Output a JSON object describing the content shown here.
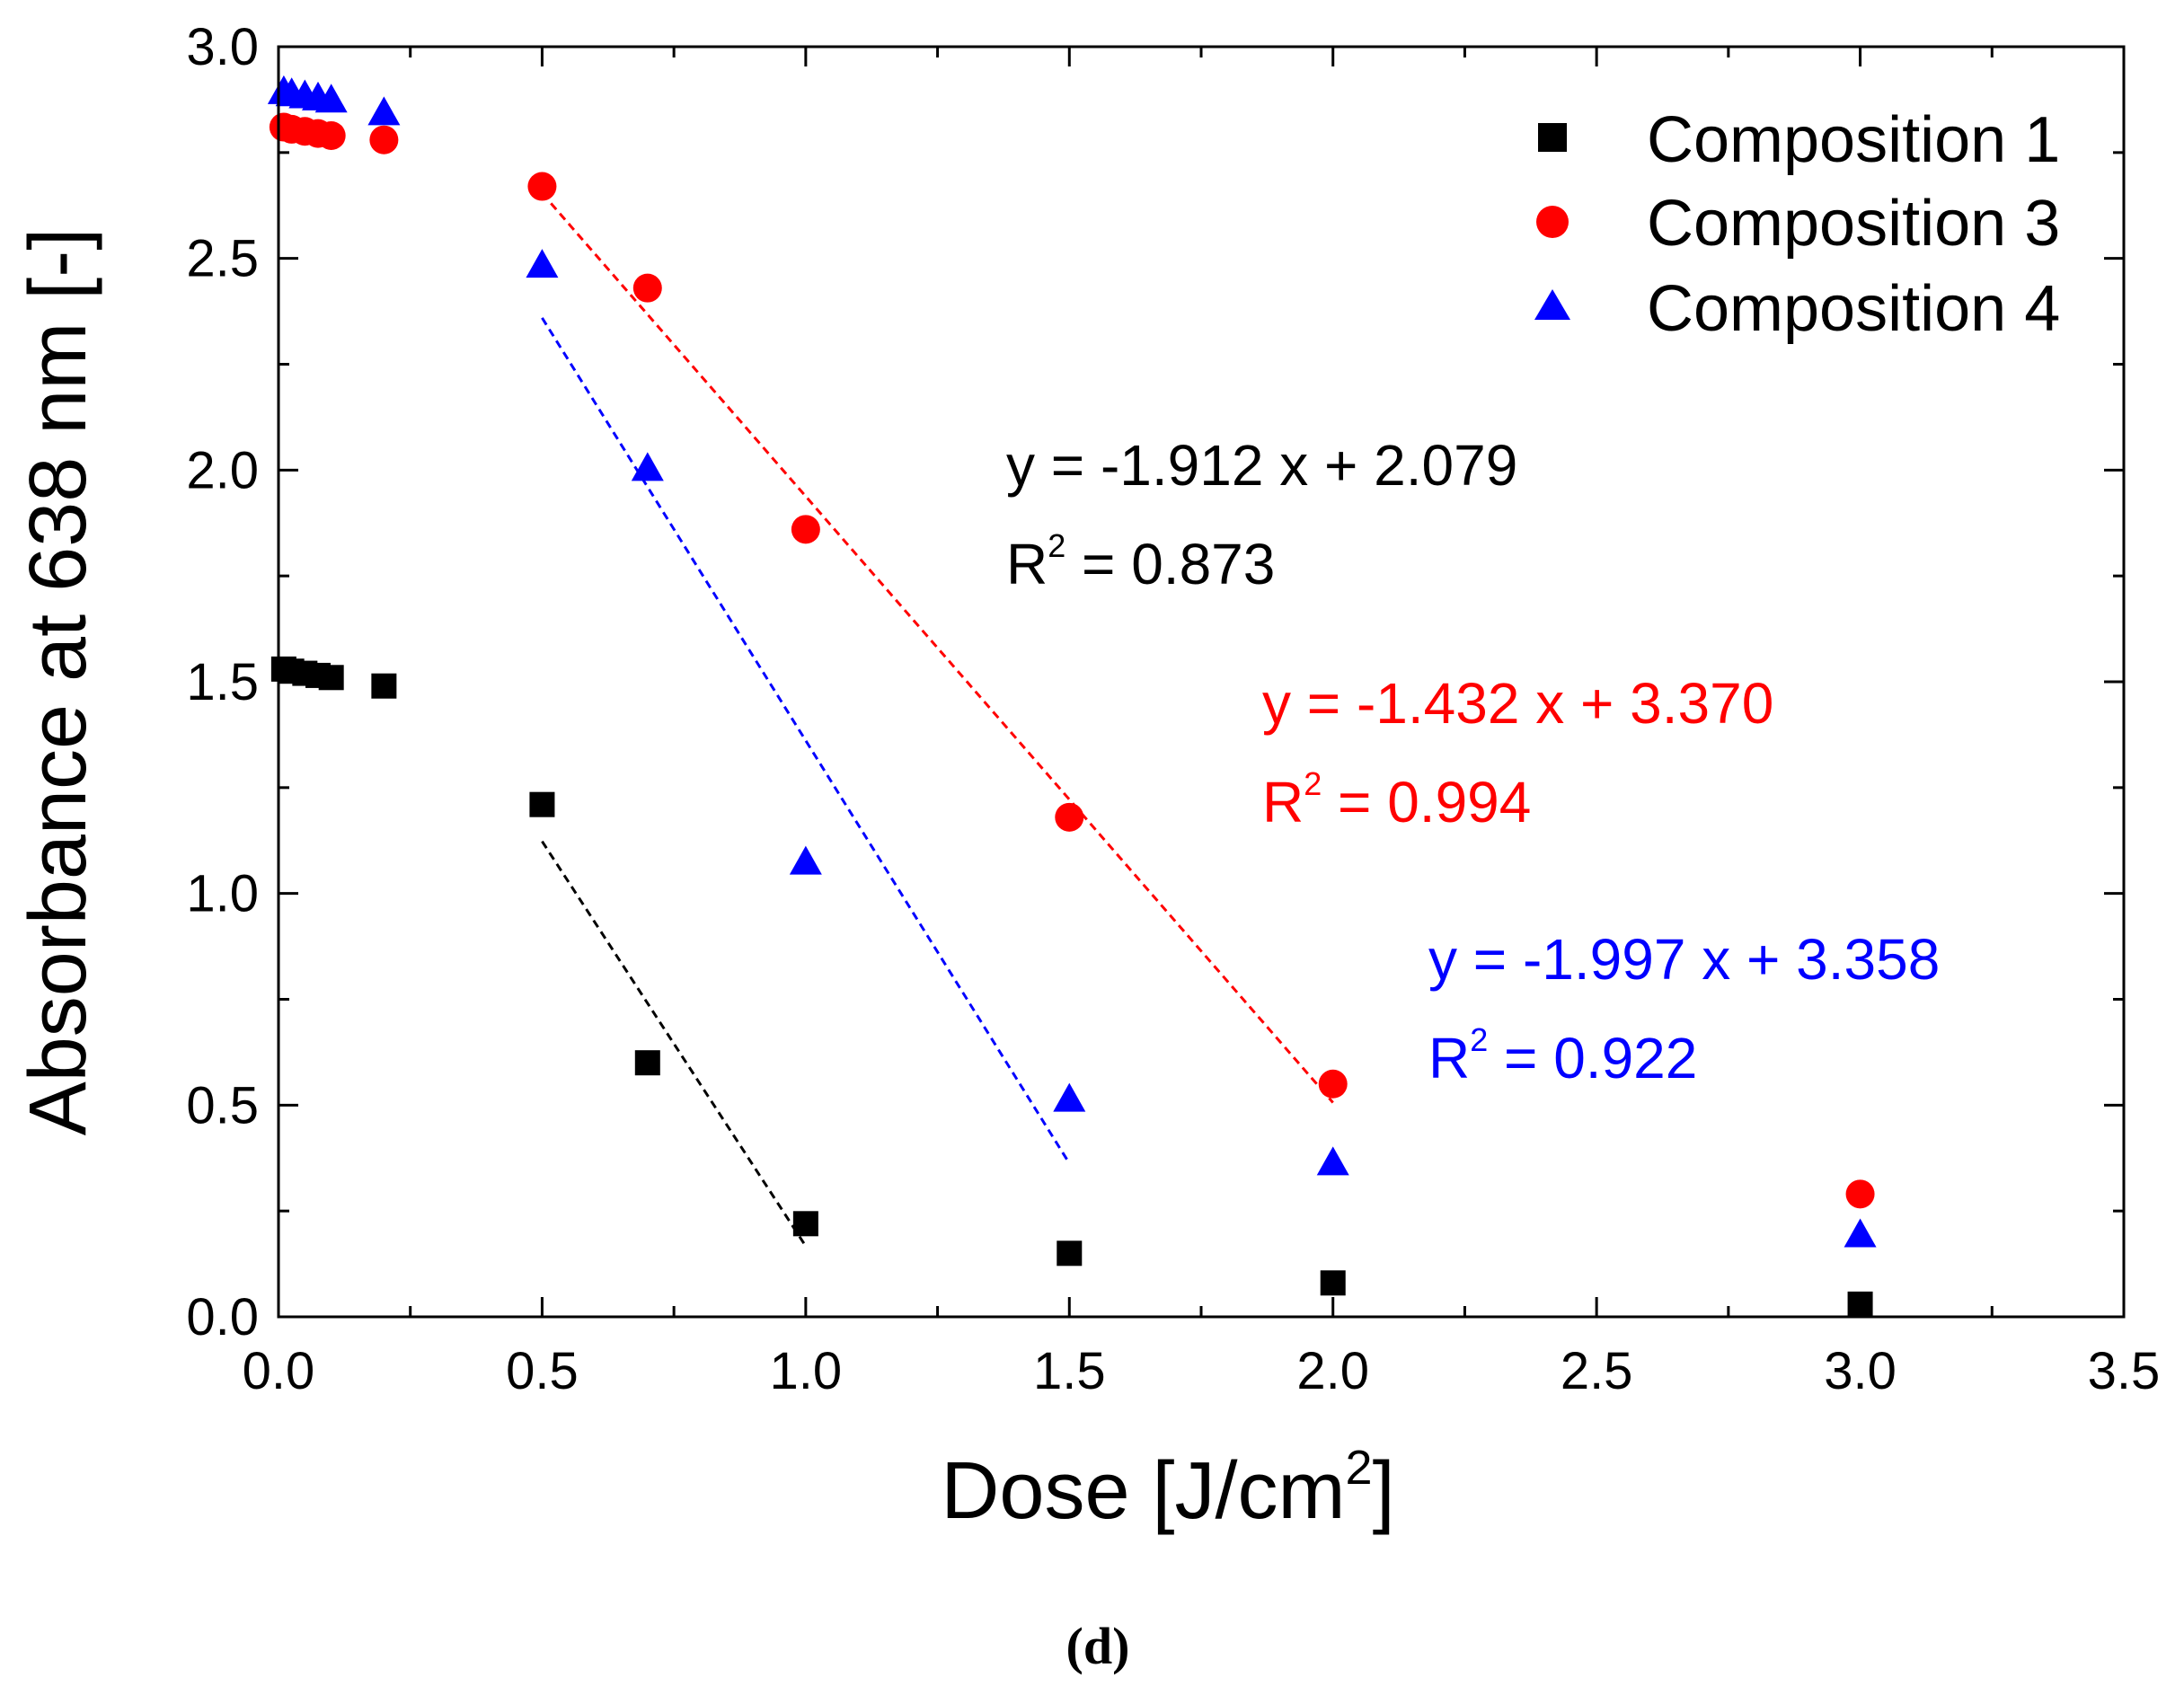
{
  "chart_data": {
    "type": "scatter",
    "panel_label": "(d)",
    "xlabel": "Dose [J/cm",
    "xlabel_sup": "2",
    "xlabel_end": "]",
    "ylabel": "Absorbance at 638 nm [-]",
    "xlim": [
      0.0,
      3.5
    ],
    "ylim": [
      0.0,
      3.0
    ],
    "x_ticks": [
      "0.0",
      "0.5",
      "1.0",
      "1.5",
      "2.0",
      "2.5",
      "3.0",
      "3.5"
    ],
    "y_ticks": [
      "0.0",
      "0.5",
      "1.0",
      "1.5",
      "2.0",
      "2.5",
      "3.0"
    ],
    "legend_position": "top-right",
    "series": [
      {
        "name": "Composition 1",
        "marker": "square",
        "color": "#000000",
        "points": [
          [
            0.01,
            1.53
          ],
          [
            0.025,
            1.525
          ],
          [
            0.05,
            1.52
          ],
          [
            0.075,
            1.515
          ],
          [
            0.1,
            1.51
          ],
          [
            0.2,
            1.49
          ],
          [
            0.5,
            1.21
          ],
          [
            0.7,
            0.6
          ],
          [
            1.0,
            0.22
          ],
          [
            1.5,
            0.15
          ],
          [
            2.0,
            0.08
          ],
          [
            3.0,
            0.03
          ]
        ],
        "fit": {
          "slope": -1.912,
          "intercept": 2.079,
          "x_range": [
            0.5,
            1.0
          ],
          "equation": "y = -1.912 x + 2.079",
          "r2_label": "R",
          "r2_sup": "2",
          "r2_value": " = 0.873"
        }
      },
      {
        "name": "Composition 3",
        "marker": "circle",
        "color": "#ff0000",
        "points": [
          [
            0.01,
            2.81
          ],
          [
            0.025,
            2.805
          ],
          [
            0.05,
            2.8
          ],
          [
            0.075,
            2.795
          ],
          [
            0.1,
            2.79
          ],
          [
            0.2,
            2.78
          ],
          [
            0.5,
            2.67
          ],
          [
            0.7,
            2.43
          ],
          [
            1.0,
            1.86
          ],
          [
            1.5,
            1.18
          ],
          [
            2.0,
            0.55
          ],
          [
            3.0,
            0.29
          ]
        ],
        "fit": {
          "slope": -1.432,
          "intercept": 3.37,
          "x_range": [
            0.5,
            2.0
          ],
          "equation": "y = -1.432 x + 3.370",
          "r2_label": "R",
          "r2_sup": "2",
          "r2_value": " = 0.994"
        }
      },
      {
        "name": "Composition 4",
        "marker": "triangle",
        "color": "#0000ff",
        "points": [
          [
            0.01,
            2.89
          ],
          [
            0.025,
            2.885
          ],
          [
            0.05,
            2.88
          ],
          [
            0.075,
            2.875
          ],
          [
            0.1,
            2.87
          ],
          [
            0.2,
            2.84
          ],
          [
            0.5,
            2.48
          ],
          [
            0.7,
            2.0
          ],
          [
            1.0,
            1.07
          ],
          [
            1.5,
            0.51
          ],
          [
            2.0,
            0.36
          ],
          [
            3.0,
            0.19
          ]
        ],
        "fit": {
          "slope": -1.997,
          "intercept": 3.358,
          "x_range": [
            0.5,
            1.5
          ],
          "equation": "y = -1.997 x + 3.358",
          "r2_label": "R",
          "r2_sup": "2",
          "r2_value": " = 0.922"
        }
      }
    ]
  }
}
